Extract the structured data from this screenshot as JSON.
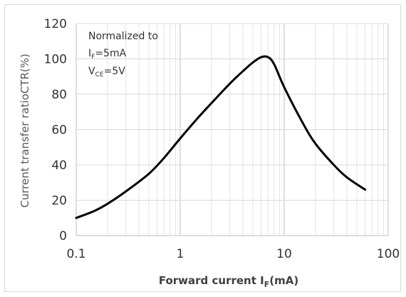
{
  "chart_data": {
    "type": "line",
    "title": "",
    "xlabel": {
      "main": "Forward current I",
      "sub": "F",
      "unit": "(mA)"
    },
    "ylabel": "Current transfer ratioCTR(%)",
    "xscale": "log",
    "xlim": [
      0.1,
      100
    ],
    "ylim": [
      0,
      120
    ],
    "xticks": [
      0.1,
      1,
      10,
      100
    ],
    "xtick_labels": [
      "0.1",
      "1",
      "10",
      "100"
    ],
    "yticks": [
      0,
      20,
      40,
      60,
      80,
      100,
      120
    ],
    "ytick_labels": [
      "0",
      "20",
      "40",
      "60",
      "80",
      "100",
      "120"
    ],
    "grid": true,
    "annotation": {
      "line1": "Normalized to",
      "line2": {
        "main": "I",
        "sub": "F",
        "rest": "=5mA"
      },
      "line3": {
        "main": "V",
        "sub": "CE",
        "rest": "=5V"
      }
    },
    "series": [
      {
        "color": "#000000",
        "x": [
          0.1,
          0.15,
          0.2,
          0.3,
          0.5,
          0.7,
          1,
          1.5,
          2,
          3,
          4,
          5,
          6,
          7,
          8,
          10,
          15,
          20,
          30,
          40,
          60
        ],
        "y": [
          10,
          14,
          18,
          25,
          35,
          44,
          55,
          67,
          75,
          86,
          93,
          98,
          101,
          101,
          97,
          84,
          64,
          52,
          40,
          33,
          26
        ]
      }
    ]
  }
}
